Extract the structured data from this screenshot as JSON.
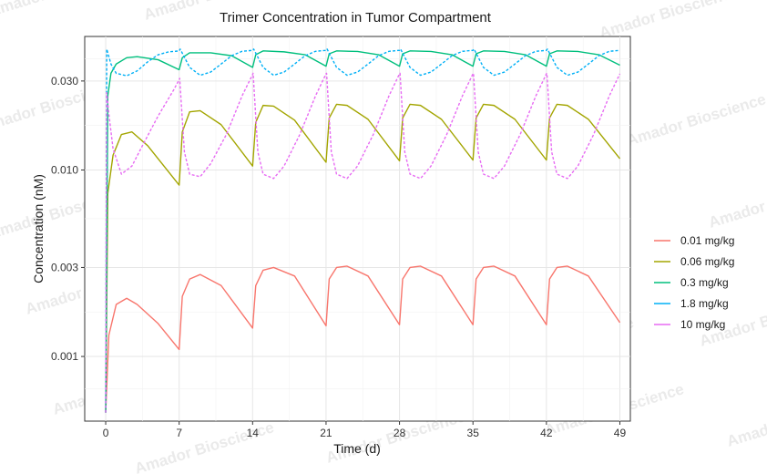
{
  "chart_data": {
    "type": "line",
    "title": "Trimer Concentration in Tumor Compartment",
    "xlabel": "Time (d)",
    "ylabel": "Concentration (nM)",
    "xlim": [
      -2,
      50
    ],
    "ylim": [
      0.00045,
      0.052
    ],
    "y_scale": "log10",
    "x_ticks": [
      0,
      7,
      14,
      21,
      28,
      35,
      42,
      49
    ],
    "x_tick_labels": [
      "0",
      "7",
      "14",
      "21",
      "28",
      "35",
      "42",
      "49"
    ],
    "y_ticks": [
      0.001,
      0.003,
      0.01,
      0.03
    ],
    "y_tick_labels": [
      "0.001",
      "0.003",
      "0.010",
      "0.030"
    ],
    "grid": true,
    "legend_position": "right",
    "dose_interval_days": 7,
    "watermark": "Amador Bioscience",
    "series": [
      {
        "name": "0.01 mg/kg",
        "color": "#F8766D",
        "line_style": "solid",
        "x": [
          0,
          0.3,
          1,
          2,
          3,
          5,
          7,
          7.3,
          8,
          9,
          11,
          14,
          14.3,
          15,
          16,
          18,
          21,
          21.3,
          22,
          23,
          25,
          28,
          28.3,
          29,
          30,
          32,
          35,
          35.3,
          36,
          37,
          39,
          42,
          42.3,
          43,
          44,
          46,
          49
        ],
        "y": [
          0.0005,
          0.0013,
          0.0019,
          0.00205,
          0.0019,
          0.0015,
          0.00109,
          0.0021,
          0.0026,
          0.00275,
          0.0024,
          0.00142,
          0.0024,
          0.0029,
          0.003,
          0.0027,
          0.00146,
          0.0026,
          0.003,
          0.00305,
          0.0027,
          0.00148,
          0.0026,
          0.003,
          0.00305,
          0.0027,
          0.00148,
          0.0026,
          0.003,
          0.00305,
          0.0027,
          0.00148,
          0.0026,
          0.003,
          0.00305,
          0.0027,
          0.00152
        ]
      },
      {
        "name": "0.06 mg/kg",
        "color": "#A3A500",
        "line_style": "solid",
        "x": [
          0,
          0.2,
          0.7,
          1.5,
          2.5,
          4,
          7,
          7.3,
          8,
          9,
          11,
          14,
          14.3,
          15,
          16,
          18,
          21,
          21.3,
          22,
          23,
          25,
          28,
          28.3,
          29,
          30,
          32,
          35,
          35.3,
          36,
          37,
          39,
          42,
          42.3,
          43,
          44,
          46,
          49
        ],
        "y": [
          0.0005,
          0.0075,
          0.012,
          0.0155,
          0.016,
          0.0135,
          0.0083,
          0.016,
          0.0205,
          0.0208,
          0.0175,
          0.0105,
          0.018,
          0.0222,
          0.022,
          0.0185,
          0.011,
          0.019,
          0.0225,
          0.0222,
          0.0187,
          0.0112,
          0.019,
          0.0225,
          0.0222,
          0.0187,
          0.0113,
          0.019,
          0.0225,
          0.0222,
          0.0187,
          0.0113,
          0.019,
          0.0225,
          0.0222,
          0.0187,
          0.0115
        ]
      },
      {
        "name": "0.3 mg/kg",
        "color": "#00BF7D",
        "line_style": "solid",
        "x": [
          0,
          0.2,
          0.5,
          1,
          2,
          3,
          5,
          7,
          7.3,
          8,
          10,
          12,
          14,
          14.3,
          15,
          17,
          19,
          21,
          21.3,
          22,
          24,
          26,
          28,
          28.3,
          29,
          31,
          33,
          35,
          35.3,
          36,
          38,
          40,
          42,
          42.3,
          43,
          45,
          47,
          49
        ],
        "y": [
          0.0005,
          0.025,
          0.033,
          0.037,
          0.04,
          0.0405,
          0.039,
          0.0345,
          0.04,
          0.0425,
          0.0425,
          0.041,
          0.0355,
          0.0415,
          0.0435,
          0.043,
          0.0415,
          0.036,
          0.042,
          0.0435,
          0.0432,
          0.0415,
          0.036,
          0.042,
          0.0435,
          0.0432,
          0.0415,
          0.036,
          0.042,
          0.0435,
          0.0432,
          0.0415,
          0.036,
          0.042,
          0.0435,
          0.0432,
          0.0415,
          0.0365
        ]
      },
      {
        "name": "1.8 mg/kg",
        "color": "#00B0F6",
        "line_style": "dashed",
        "x": [
          0,
          0.1,
          0.5,
          1,
          2,
          3,
          4,
          5,
          6,
          7,
          7.1,
          8,
          9,
          10,
          11,
          12,
          13,
          14,
          14.1,
          15,
          16,
          17,
          18,
          19,
          20,
          21,
          21.1,
          22,
          23,
          24,
          25,
          26,
          27,
          28,
          28.1,
          29,
          30,
          31,
          32,
          33,
          34,
          35,
          35.1,
          36,
          37,
          38,
          39,
          40,
          41,
          42,
          42.1,
          43,
          44,
          45,
          46,
          47,
          48,
          49
        ],
        "y": [
          0.0005,
          0.0445,
          0.037,
          0.033,
          0.032,
          0.034,
          0.038,
          0.0415,
          0.043,
          0.0435,
          0.0445,
          0.0355,
          0.0322,
          0.0335,
          0.037,
          0.041,
          0.0433,
          0.0438,
          0.0445,
          0.0355,
          0.0322,
          0.0335,
          0.037,
          0.041,
          0.0433,
          0.0438,
          0.0445,
          0.0355,
          0.0322,
          0.0335,
          0.037,
          0.041,
          0.0433,
          0.0438,
          0.0445,
          0.0355,
          0.0322,
          0.0335,
          0.037,
          0.041,
          0.0433,
          0.0438,
          0.0445,
          0.0355,
          0.0322,
          0.0335,
          0.037,
          0.041,
          0.0433,
          0.0438,
          0.0445,
          0.0355,
          0.0322,
          0.0335,
          0.037,
          0.041,
          0.0433,
          0.0438
        ]
      },
      {
        "name": "10 mg/kg",
        "color": "#E76BF3",
        "line_style": "dashed",
        "x": [
          0,
          0.1,
          0.3,
          0.7,
          1.5,
          2.5,
          3.5,
          5,
          6.5,
          7,
          7.05,
          7.5,
          8,
          9,
          10,
          11.5,
          13,
          14,
          14.05,
          14.5,
          15,
          16,
          17,
          18.5,
          20,
          21,
          21.05,
          21.5,
          22,
          23,
          24,
          25.5,
          27,
          28,
          28.05,
          28.5,
          29,
          30,
          31,
          32.5,
          34,
          35,
          35.05,
          35.5,
          36,
          37,
          38,
          39.5,
          41,
          42,
          42.05,
          42.5,
          43,
          44,
          45,
          46.5,
          48,
          49
        ],
        "y": [
          0.0005,
          0.026,
          0.02,
          0.013,
          0.0095,
          0.0105,
          0.0135,
          0.0195,
          0.027,
          0.0305,
          0.031,
          0.0125,
          0.0095,
          0.0092,
          0.0108,
          0.0155,
          0.025,
          0.0325,
          0.033,
          0.0125,
          0.0095,
          0.009,
          0.0105,
          0.0155,
          0.025,
          0.0328,
          0.033,
          0.0125,
          0.0095,
          0.009,
          0.0105,
          0.0155,
          0.025,
          0.0328,
          0.033,
          0.0125,
          0.0095,
          0.009,
          0.0105,
          0.0155,
          0.025,
          0.0328,
          0.033,
          0.0125,
          0.0095,
          0.009,
          0.0105,
          0.0155,
          0.025,
          0.0328,
          0.033,
          0.0125,
          0.0095,
          0.009,
          0.0105,
          0.0155,
          0.025,
          0.0328
        ]
      }
    ]
  }
}
